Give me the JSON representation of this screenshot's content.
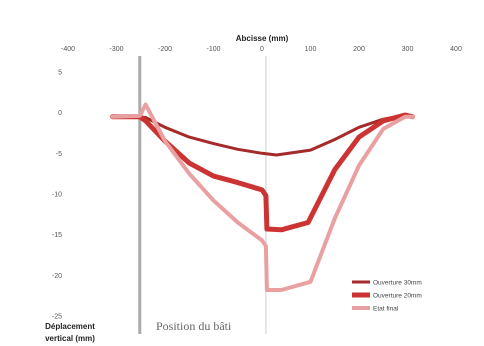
{
  "chart_data": {
    "type": "line",
    "xlabel": "Abcisse (mm)",
    "ylabel_line1": "Déplacement",
    "ylabel_line2": "vertical (mm)",
    "xlim": [
      -400,
      400
    ],
    "ylim": [
      -25,
      5
    ],
    "x_ticks": [
      -400,
      -300,
      -200,
      -100,
      0,
      100,
      200,
      300,
      400
    ],
    "y_ticks": [
      5,
      0,
      -5,
      -10,
      -15,
      -20,
      -25
    ],
    "grid": false,
    "legend_position": "bottom-right",
    "annotation": "Position du bâti",
    "vertical_lines": [
      -252,
      8
    ],
    "series": [
      {
        "name": "Ouverture 30mm",
        "color": "#a52a2a",
        "width": 3,
        "points": [
          [
            -308,
            -0.5
          ],
          [
            -252,
            -0.5
          ],
          [
            -240,
            -0.6
          ],
          [
            -200,
            -1.8
          ],
          [
            -150,
            -3.0
          ],
          [
            -100,
            -3.8
          ],
          [
            -50,
            -4.5
          ],
          [
            0,
            -5.0
          ],
          [
            30,
            -5.2
          ],
          [
            100,
            -4.6
          ],
          [
            150,
            -3.3
          ],
          [
            200,
            -1.8
          ],
          [
            250,
            -0.8
          ],
          [
            295,
            -0.3
          ],
          [
            310,
            -0.4
          ]
        ]
      },
      {
        "name": "Ouverture 20mm",
        "color": "#cc3333",
        "width": 5,
        "points": [
          [
            -308,
            -0.5
          ],
          [
            -252,
            -0.5
          ],
          [
            -240,
            -1.0
          ],
          [
            -200,
            -3.5
          ],
          [
            -150,
            -6.2
          ],
          [
            -100,
            -7.8
          ],
          [
            -50,
            -8.6
          ],
          [
            0,
            -9.5
          ],
          [
            8,
            -10.2
          ],
          [
            10,
            -14.3
          ],
          [
            40,
            -14.4
          ],
          [
            95,
            -13.5
          ],
          [
            150,
            -7.0
          ],
          [
            200,
            -3.0
          ],
          [
            250,
            -1.0
          ],
          [
            295,
            -0.3
          ],
          [
            310,
            -0.5
          ]
        ]
      },
      {
        "name": "Etat final",
        "color": "#e9a0a0",
        "width": 4,
        "points": [
          [
            -308,
            -0.5
          ],
          [
            -252,
            -0.4
          ],
          [
            -240,
            1.0
          ],
          [
            -200,
            -3.5
          ],
          [
            -150,
            -7.5
          ],
          [
            -100,
            -10.8
          ],
          [
            -50,
            -13.5
          ],
          [
            0,
            -15.7
          ],
          [
            8,
            -16.4
          ],
          [
            10,
            -21.8
          ],
          [
            40,
            -21.8
          ],
          [
            100,
            -20.8
          ],
          [
            150,
            -13.0
          ],
          [
            200,
            -6.5
          ],
          [
            250,
            -2.0
          ],
          [
            295,
            -0.5
          ],
          [
            310,
            -0.5
          ]
        ]
      }
    ]
  }
}
